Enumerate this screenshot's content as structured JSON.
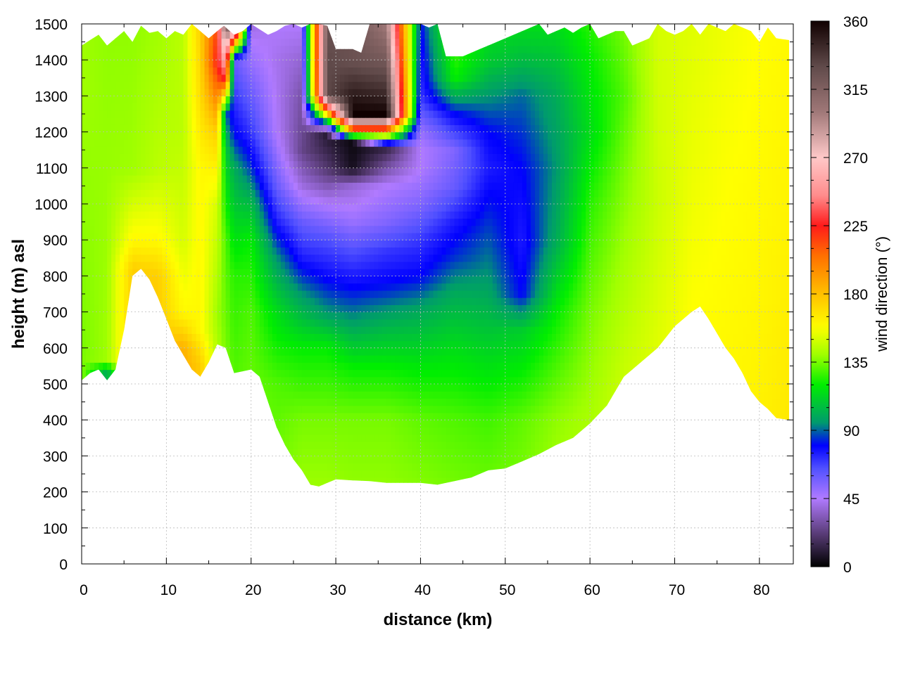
{
  "chart_data": {
    "type": "heatmap",
    "title": "",
    "xlabel": "distance (km)",
    "ylabel": "height (m) asl",
    "colorbar_label": "wind direction (°)",
    "xlim": [
      0,
      84
    ],
    "ylim": [
      0,
      1500
    ],
    "zlim": [
      0,
      360
    ],
    "x_ticks": [
      0,
      10,
      20,
      30,
      40,
      50,
      60,
      70,
      80
    ],
    "y_ticks": [
      0,
      100,
      200,
      300,
      400,
      500,
      600,
      700,
      800,
      900,
      1000,
      1100,
      1200,
      1300,
      1400,
      1500
    ],
    "cb_ticks": [
      0,
      45,
      90,
      135,
      180,
      225,
      270,
      315,
      360
    ],
    "grid": true,
    "colormap": [
      {
        "v": 0,
        "color": "#000000"
      },
      {
        "v": 22,
        "color": "#5a3d78"
      },
      {
        "v": 45,
        "color": "#b07aff"
      },
      {
        "v": 65,
        "color": "#5050ff"
      },
      {
        "v": 80,
        "color": "#0000ff"
      },
      {
        "v": 95,
        "color": "#009a6e"
      },
      {
        "v": 120,
        "color": "#00ee00"
      },
      {
        "v": 140,
        "color": "#a0ff00"
      },
      {
        "v": 158,
        "color": "#ffff00"
      },
      {
        "v": 180,
        "color": "#ffc000"
      },
      {
        "v": 205,
        "color": "#ff7000"
      },
      {
        "v": 225,
        "color": "#ff1a1a"
      },
      {
        "v": 245,
        "color": "#ff8c8c"
      },
      {
        "v": 270,
        "color": "#ffc8c8"
      },
      {
        "v": 300,
        "color": "#a07878"
      },
      {
        "v": 330,
        "color": "#604a4a"
      },
      {
        "v": 360,
        "color": "#100000"
      }
    ],
    "terrain_km": [
      0,
      1,
      2,
      3,
      4,
      5,
      6,
      7,
      8,
      9,
      10,
      11,
      12,
      13,
      14,
      15,
      16,
      17,
      18,
      19,
      20,
      21,
      22,
      23,
      24,
      25,
      26,
      27,
      28,
      29,
      30,
      32,
      34,
      36,
      38,
      40,
      42,
      44,
      46,
      48,
      50,
      52,
      54,
      56,
      58,
      60,
      62,
      64,
      66,
      68,
      70,
      72,
      73,
      74,
      75,
      76,
      77,
      78,
      79,
      80,
      81,
      82,
      83.5
    ],
    "terrain_m": [
      510,
      530,
      540,
      510,
      540,
      650,
      800,
      820,
      790,
      740,
      680,
      620,
      580,
      540,
      520,
      560,
      610,
      600,
      530,
      535,
      540,
      520,
      450,
      380,
      330,
      290,
      260,
      220,
      215,
      225,
      235,
      232,
      230,
      225,
      225,
      225,
      220,
      230,
      240,
      260,
      265,
      285,
      305,
      330,
      350,
      390,
      440,
      520,
      560,
      600,
      660,
      700,
      715,
      680,
      640,
      600,
      570,
      530,
      480,
      450,
      430,
      405,
      400
    ],
    "top_km": [
      0,
      1,
      2,
      3,
      4,
      5,
      6,
      7,
      8,
      9,
      10,
      11,
      12,
      13,
      14,
      15,
      16,
      16.8,
      17.5,
      18,
      19,
      20,
      21,
      22,
      23,
      24,
      25,
      26,
      27,
      28,
      29,
      30,
      31,
      32,
      33,
      34,
      35,
      36,
      37,
      38,
      39,
      40,
      41,
      42,
      43,
      44,
      45,
      46,
      47,
      48,
      49,
      50,
      51,
      52,
      53,
      54,
      55,
      56,
      57,
      58,
      59,
      60,
      61,
      62,
      63,
      64,
      65,
      66,
      67,
      68,
      69,
      70,
      71,
      72,
      73,
      74,
      75,
      76,
      77,
      78,
      79,
      80,
      81,
      82,
      83.5
    ],
    "top_m": [
      1440,
      1455,
      1470,
      1440,
      1460,
      1480,
      1450,
      1495,
      1475,
      1480,
      1460,
      1480,
      1470,
      1500,
      1480,
      1460,
      1480,
      1495,
      1480,
      1470,
      1480,
      1500,
      1485,
      1470,
      1480,
      1495,
      1500,
      1490,
      1500,
      1500,
      1495,
      1430,
      1430,
      1430,
      1420,
      1500,
      1500,
      1500,
      1500,
      1500,
      1500,
      1500,
      1490,
      1500,
      1410,
      1410,
      1410,
      1420,
      1430,
      1440,
      1450,
      1460,
      1470,
      1480,
      1490,
      1500,
      1470,
      1480,
      1490,
      1475,
      1490,
      1500,
      1460,
      1470,
      1480,
      1480,
      1440,
      1450,
      1460,
      1500,
      1480,
      1470,
      1480,
      1500,
      1470,
      1500,
      1490,
      1480,
      1500,
      1490,
      1480,
      1450,
      1490,
      1460,
      1455
    ],
    "field_rows": [
      {
        "km": 0,
        "col": [
          [
            0,
            100
          ],
          [
            100,
            160
          ],
          [
            250,
            140
          ],
          [
            600,
            135
          ],
          [
            1300,
            140
          ],
          [
            1500,
            140
          ]
        ]
      },
      {
        "km": 3,
        "col": [
          [
            0,
            95
          ],
          [
            540,
            100
          ],
          [
            560,
            140
          ],
          [
            700,
            140
          ],
          [
            1500,
            138
          ]
        ]
      },
      {
        "km": 6,
        "col": [
          [
            0,
            175
          ],
          [
            820,
            175
          ],
          [
            900,
            160
          ],
          [
            1100,
            140
          ],
          [
            1500,
            138
          ]
        ]
      },
      {
        "km": 9,
        "col": [
          [
            0,
            185
          ],
          [
            800,
            175
          ],
          [
            900,
            160
          ],
          [
            1100,
            145
          ],
          [
            1500,
            140
          ]
        ]
      },
      {
        "km": 12,
        "col": [
          [
            0,
            200
          ],
          [
            600,
            185
          ],
          [
            700,
            160
          ],
          [
            900,
            150
          ],
          [
            1200,
            145
          ],
          [
            1500,
            145
          ]
        ]
      },
      {
        "km": 14,
        "col": [
          [
            0,
            195
          ],
          [
            560,
            175
          ],
          [
            650,
            160
          ],
          [
            1100,
            160
          ],
          [
            1300,
            170
          ],
          [
            1500,
            175
          ]
        ]
      },
      {
        "km": 16,
        "col": [
          [
            0,
            160
          ],
          [
            700,
            140
          ],
          [
            1000,
            150
          ],
          [
            1200,
            175
          ],
          [
            1300,
            200
          ],
          [
            1400,
            225
          ],
          [
            1500,
            215
          ]
        ]
      },
      {
        "km": 17,
        "col": [
          [
            0,
            145
          ],
          [
            900,
            130
          ],
          [
            1150,
            110
          ],
          [
            1250,
            90
          ],
          [
            1350,
            230
          ],
          [
            1500,
            320
          ]
        ]
      },
      {
        "km": 18,
        "col": [
          [
            0,
            140
          ],
          [
            800,
            125
          ],
          [
            1100,
            100
          ],
          [
            1200,
            80
          ],
          [
            1300,
            70
          ],
          [
            1400,
            60
          ],
          [
            1500,
            330
          ]
        ]
      },
      {
        "km": 20,
        "col": [
          [
            0,
            140
          ],
          [
            700,
            130
          ],
          [
            900,
            120
          ],
          [
            1000,
            105
          ],
          [
            1100,
            85
          ],
          [
            1200,
            70
          ],
          [
            1350,
            55
          ],
          [
            1500,
            40
          ]
        ]
      },
      {
        "km": 23,
        "col": [
          [
            0,
            140
          ],
          [
            500,
            130
          ],
          [
            700,
            115
          ],
          [
            850,
            95
          ],
          [
            950,
            75
          ],
          [
            1050,
            60
          ],
          [
            1200,
            45
          ],
          [
            1400,
            42
          ],
          [
            1500,
            45
          ]
        ]
      },
      {
        "km": 26,
        "col": [
          [
            0,
            145
          ],
          [
            400,
            135
          ],
          [
            600,
            120
          ],
          [
            750,
            95
          ],
          [
            850,
            75
          ],
          [
            950,
            60
          ],
          [
            1050,
            40
          ],
          [
            1150,
            25
          ],
          [
            1300,
            30
          ],
          [
            1500,
            45
          ]
        ]
      },
      {
        "km": 29,
        "col": [
          [
            0,
            145
          ],
          [
            400,
            135
          ],
          [
            600,
            120
          ],
          [
            700,
            95
          ],
          [
            800,
            78
          ],
          [
            900,
            65
          ],
          [
            1000,
            45
          ],
          [
            1100,
            20
          ],
          [
            1200,
            8
          ],
          [
            1300,
            330
          ],
          [
            1400,
            330
          ],
          [
            1500,
            325
          ]
        ]
      },
      {
        "km": 32,
        "col": [
          [
            0,
            142
          ],
          [
            400,
            135
          ],
          [
            550,
            120
          ],
          [
            680,
            95
          ],
          [
            780,
            78
          ],
          [
            870,
            65
          ],
          [
            950,
            50
          ],
          [
            1050,
            38
          ],
          [
            1100,
            5
          ],
          [
            1170,
            3
          ],
          [
            1200,
            180
          ],
          [
            1250,
            360
          ],
          [
            1300,
            350
          ],
          [
            1400,
            325
          ]
        ]
      },
      {
        "km": 36,
        "col": [
          [
            0,
            142
          ],
          [
            400,
            135
          ],
          [
            550,
            120
          ],
          [
            680,
            100
          ],
          [
            780,
            80
          ],
          [
            870,
            70
          ],
          [
            950,
            55
          ],
          [
            1050,
            45
          ],
          [
            1100,
            30
          ],
          [
            1150,
            15
          ],
          [
            1200,
            180
          ],
          [
            1250,
            360
          ],
          [
            1300,
            345
          ],
          [
            1400,
            320
          ],
          [
            1500,
            300
          ]
        ]
      },
      {
        "km": 40,
        "col": [
          [
            0,
            142
          ],
          [
            400,
            132
          ],
          [
            550,
            118
          ],
          [
            700,
            100
          ],
          [
            800,
            80
          ],
          [
            900,
            70
          ],
          [
            1000,
            55
          ],
          [
            1100,
            45
          ],
          [
            1150,
            45
          ],
          [
            1200,
            50
          ],
          [
            1300,
            70
          ],
          [
            1400,
            75
          ],
          [
            1500,
            80
          ]
        ]
      },
      {
        "km": 44,
        "col": [
          [
            0,
            140
          ],
          [
            400,
            130
          ],
          [
            600,
            115
          ],
          [
            750,
            100
          ],
          [
            850,
            85
          ],
          [
            950,
            75
          ],
          [
            1050,
            60
          ],
          [
            1150,
            55
          ],
          [
            1250,
            80
          ],
          [
            1350,
            120
          ],
          [
            1500,
            135
          ]
        ]
      },
      {
        "km": 48,
        "col": [
          [
            0,
            140
          ],
          [
            400,
            128
          ],
          [
            600,
            112
          ],
          [
            800,
            95
          ],
          [
            950,
            85
          ],
          [
            1100,
            75
          ],
          [
            1200,
            80
          ],
          [
            1300,
            95
          ],
          [
            1400,
            110
          ],
          [
            1500,
            115
          ]
        ]
      },
      {
        "km": 52,
        "col": [
          [
            0,
            140
          ],
          [
            400,
            132
          ],
          [
            650,
            110
          ],
          [
            750,
            80
          ],
          [
            900,
            75
          ],
          [
            1100,
            80
          ],
          [
            1300,
            90
          ],
          [
            1400,
            105
          ],
          [
            1500,
            115
          ]
        ]
      },
      {
        "km": 56,
        "col": [
          [
            0,
            145
          ],
          [
            400,
            138
          ],
          [
            700,
            120
          ],
          [
            900,
            100
          ],
          [
            1100,
            95
          ],
          [
            1300,
            100
          ],
          [
            1500,
            115
          ]
        ]
      },
      {
        "km": 60,
        "col": [
          [
            0,
            148
          ],
          [
            400,
            142
          ],
          [
            700,
            135
          ],
          [
            1000,
            125
          ],
          [
            1200,
            115
          ],
          [
            1400,
            120
          ],
          [
            1500,
            125
          ]
        ]
      },
      {
        "km": 64,
        "col": [
          [
            0,
            150
          ],
          [
            500,
            148
          ],
          [
            800,
            142
          ],
          [
            1100,
            135
          ],
          [
            1300,
            130
          ],
          [
            1500,
            135
          ]
        ]
      },
      {
        "km": 68,
        "col": [
          [
            0,
            155
          ],
          [
            600,
            152
          ],
          [
            1000,
            148
          ],
          [
            1500,
            150
          ]
        ]
      },
      {
        "km": 72,
        "col": [
          [
            0,
            160
          ],
          [
            700,
            158
          ],
          [
            1000,
            155
          ],
          [
            1500,
            152
          ]
        ]
      },
      {
        "km": 76,
        "col": [
          [
            0,
            162
          ],
          [
            600,
            160
          ],
          [
            1000,
            158
          ],
          [
            1500,
            155
          ]
        ]
      },
      {
        "km": 80,
        "col": [
          [
            0,
            165
          ],
          [
            500,
            162
          ],
          [
            1000,
            160
          ],
          [
            1500,
            158
          ]
        ]
      },
      {
        "km": 83.5,
        "col": [
          [
            0,
            168
          ],
          [
            500,
            165
          ],
          [
            1000,
            162
          ],
          [
            1500,
            160
          ]
        ]
      }
    ]
  }
}
